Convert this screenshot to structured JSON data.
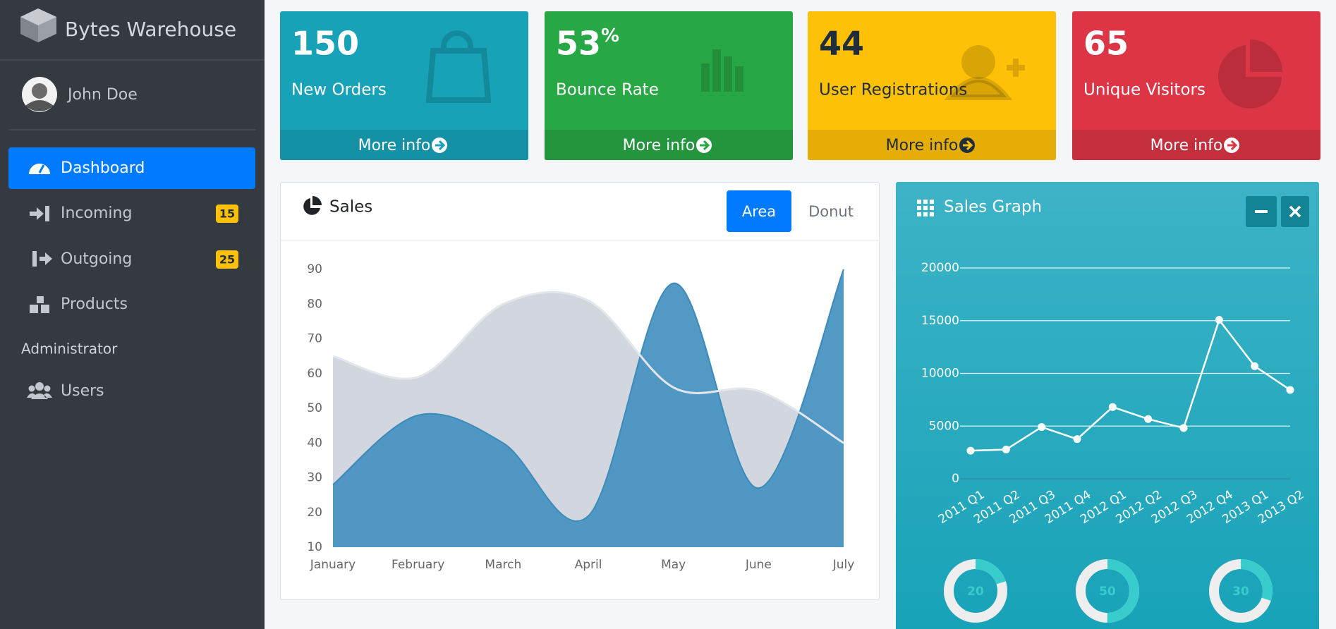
{
  "sidebar": {
    "brand": "Bytes Warehouse",
    "user": "John Doe",
    "menu": [
      {
        "label": "Dashboard"
      },
      {
        "label": "Incoming",
        "badge": 15
      },
      {
        "label": "Outgoing",
        "badge": 25
      },
      {
        "label": "Products"
      }
    ],
    "section": "Administrator",
    "admin_menu": [
      {
        "label": "Users"
      }
    ]
  },
  "info_boxes": [
    {
      "value": 150,
      "label": "New Orders",
      "link": "More info",
      "color": "#17a2b8",
      "text_color": "#ffffff"
    },
    {
      "value": 53,
      "unit": "%",
      "label": "Bounce Rate",
      "link": "More info",
      "color": "#28a745",
      "text_color": "#ffffff"
    },
    {
      "value": 44,
      "label": "User Registrations",
      "link": "More info",
      "color": "#ffc107",
      "text_color": "#1f2d3d"
    },
    {
      "value": 65,
      "label": "Unique Visitors",
      "link": "More info",
      "color": "#dc3545",
      "text_color": "#ffffff"
    }
  ],
  "sales": {
    "title": "Sales",
    "tabs": [
      "Area",
      "Donut"
    ],
    "chart_data": {
      "type": "area",
      "categories": [
        "January",
        "February",
        "March",
        "April",
        "May",
        "June",
        "July"
      ],
      "series": [
        {
          "color": "#d2d6de",
          "values": [
            65,
            59,
            80,
            81,
            56,
            55,
            40
          ]
        },
        {
          "color": "#4a94c2",
          "values": [
            28,
            48,
            40,
            19,
            86,
            27,
            90
          ]
        }
      ],
      "ylim": [
        10,
        90
      ],
      "yticks": [
        10,
        20,
        30,
        40,
        50,
        60,
        70,
        80,
        90
      ]
    }
  },
  "sales_graph": {
    "title": "Sales Graph",
    "chart_data": {
      "type": "line",
      "categories": [
        "2011 Q1",
        "2011 Q2",
        "2011 Q3",
        "2011 Q4",
        "2012 Q1",
        "2012 Q2",
        "2012 Q3",
        "2012 Q4",
        "2013 Q1",
        "2013 Q2"
      ],
      "values": [
        2666,
        2778,
        4912,
        3767,
        6810,
        5670,
        4820,
        15073,
        10687,
        8432
      ],
      "color": "#ffffff",
      "ylim": [
        0,
        20000
      ],
      "yticks": [
        0,
        5000,
        10000,
        15000,
        20000
      ],
      "grid": true
    },
    "knobs": {
      "values": [
        20,
        50,
        30
      ],
      "range": [
        0,
        100
      ],
      "color": "#39cccc"
    }
  }
}
